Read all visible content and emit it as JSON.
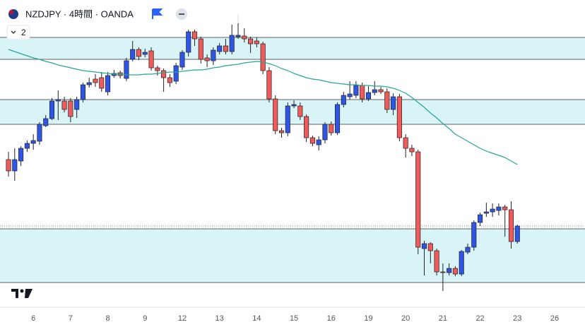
{
  "header": {
    "symbol": "NZDJPY · 4時間 · OANDA",
    "indicator_count": "2"
  },
  "chart_data": {
    "type": "candlestick",
    "up_color": "#2f55e6",
    "down_color": "#f05a5a",
    "zone_color": "#d8f4f7",
    "ma_color": "#26a69a",
    "xlim": [
      -1.37,
      92.9
    ],
    "ylim": [
      0,
      435
    ],
    "xticks": [
      {
        "value": 4,
        "label": "6"
      },
      {
        "value": 10,
        "label": "7"
      },
      {
        "value": 16,
        "label": "8"
      },
      {
        "value": 22,
        "label": "9"
      },
      {
        "value": 28,
        "label": "12"
      },
      {
        "value": 34,
        "label": "13"
      },
      {
        "value": 40,
        "label": "14"
      },
      {
        "value": 46,
        "label": "15"
      },
      {
        "value": 52,
        "label": "16"
      },
      {
        "value": 58,
        "label": "19"
      },
      {
        "value": 64,
        "label": "20"
      },
      {
        "value": 70,
        "label": "21"
      },
      {
        "value": 76,
        "label": "22"
      },
      {
        "value": 82,
        "label": "23"
      },
      {
        "value": 88,
        "label": "26"
      }
    ],
    "zones": [
      {
        "high": 382,
        "low": 351
      },
      {
        "high": 294,
        "low": 259
      },
      {
        "high": 111,
        "low": 35
      }
    ],
    "last_price": 115,
    "open": [
      209,
      193,
      207,
      225,
      232,
      235,
      257,
      267,
      292,
      292,
      292,
      280,
      294,
      315,
      323,
      325,
      305,
      328,
      332,
      324,
      351,
      365,
      358,
      363,
      339,
      335,
      325,
      320,
      340,
      361,
      390,
      380,
      353,
      349,
      362,
      370,
      362,
      383,
      384,
      380,
      377,
      373,
      335,
      295,
      250,
      247,
      285,
      285,
      270,
      240,
      230,
      237,
      259,
      247,
      287,
      298,
      300,
      314,
      295,
      304,
      308,
      305,
      280,
      298,
      240,
      225,
      220,
      83,
      90,
      80,
      50,
      49,
      55,
      47,
      78,
      85,
      120,
      133,
      135,
      137,
      142,
      138,
      93
    ],
    "high": [
      220,
      225,
      228,
      236,
      245,
      262,
      272,
      296,
      307,
      298,
      296,
      298,
      318,
      325,
      330,
      333,
      333,
      336,
      335,
      353,
      377,
      368,
      366,
      368,
      342,
      338,
      330,
      346,
      364,
      393,
      393,
      383,
      358,
      368,
      374,
      380,
      400,
      415,
      395,
      383,
      382,
      376,
      340,
      300,
      254,
      290,
      293,
      290,
      273,
      243,
      242,
      262,
      263,
      290,
      305,
      320,
      320,
      318,
      313,
      320,
      312,
      310,
      303,
      302,
      245,
      230,
      223,
      94,
      92,
      83,
      62,
      62,
      58,
      81,
      90,
      123,
      134,
      148,
      147,
      147,
      145,
      150,
      117
    ],
    "low": [
      185,
      179,
      200,
      220,
      223,
      230,
      255,
      265,
      265,
      276,
      262,
      268,
      290,
      311,
      312,
      305,
      300,
      325,
      324,
      320,
      348,
      350,
      354,
      335,
      328,
      305,
      312,
      316,
      336,
      355,
      370,
      345,
      340,
      343,
      358,
      358,
      358,
      380,
      375,
      360,
      368,
      330,
      290,
      245,
      240,
      242,
      282,
      265,
      234,
      228,
      222,
      232,
      243,
      244,
      283,
      294,
      296,
      290,
      292,
      300,
      302,
      275,
      272,
      235,
      212,
      214,
      75,
      45,
      62,
      45,
      23,
      45,
      44,
      44,
      75,
      80,
      115,
      128,
      128,
      130,
      100,
      83,
      90
    ],
    "close": [
      193,
      209,
      225,
      232,
      236,
      259,
      267,
      292,
      294,
      280,
      270,
      294,
      315,
      318,
      318,
      310,
      328,
      331,
      328,
      349,
      365,
      355,
      361,
      339,
      335,
      325,
      318,
      342,
      361,
      390,
      380,
      351,
      349,
      364,
      370,
      362,
      385,
      385,
      380,
      373,
      373,
      335,
      295,
      250,
      247,
      285,
      287,
      270,
      240,
      232,
      237,
      259,
      247,
      287,
      300,
      302,
      314,
      295,
      304,
      308,
      305,
      280,
      298,
      240,
      225,
      220,
      85,
      90,
      80,
      50,
      49,
      55,
      47,
      79,
      85,
      120,
      131,
      135,
      139,
      142,
      138,
      93,
      115
    ],
    "ma": {
      "values": [
        365,
        362,
        359,
        356,
        353,
        351,
        348,
        346,
        343,
        341,
        339,
        337,
        335,
        334,
        333,
        332,
        331,
        330,
        330,
        329,
        329,
        329,
        330,
        330,
        331,
        332,
        333,
        333,
        334,
        335,
        336,
        336,
        337,
        339,
        340,
        342,
        343,
        344,
        346,
        347,
        348,
        347,
        345,
        342,
        338,
        335,
        331,
        328,
        325,
        323,
        322,
        320,
        318,
        317,
        316,
        315,
        315,
        314,
        314,
        313,
        313,
        312,
        310,
        307,
        303,
        297,
        290,
        283,
        275,
        268,
        260,
        253,
        245,
        240,
        235,
        230,
        225,
        221,
        218,
        215,
        212,
        207,
        202
      ]
    }
  }
}
